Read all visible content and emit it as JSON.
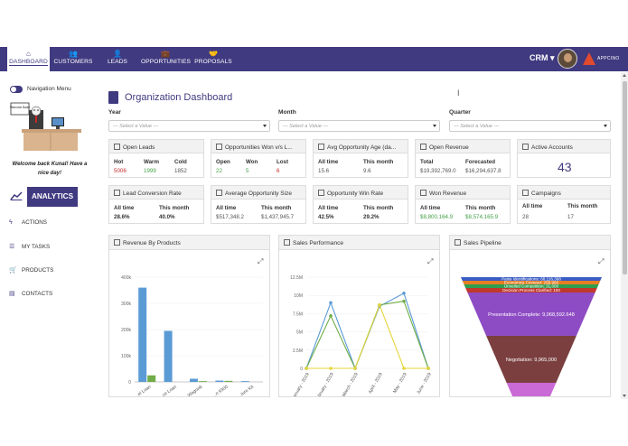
{
  "nav": {
    "items": [
      {
        "label": "DASHBOARD",
        "icon": "home-icon",
        "glyph": "⌂"
      },
      {
        "label": "CUSTOMERS",
        "icon": "users-icon",
        "glyph": "👥"
      },
      {
        "label": "LEADS",
        "icon": "user-plus-icon",
        "glyph": "👤"
      },
      {
        "label": "OPPORTUNITIES",
        "icon": "briefcase-icon",
        "glyph": "💼"
      },
      {
        "label": "PROPOSALS",
        "icon": "handshake-icon",
        "glyph": "🤝"
      }
    ],
    "crm_label": "CRM ▾",
    "logo_text": "APPCINO",
    "accent": "#403a80"
  },
  "sidebar": {
    "nav_menu_label": "Navigation Menu",
    "sign_text": "Welcome Back!",
    "welcome": "Welcome back Kunal! Have a nice day!",
    "analytics_label": "ANALYTICS",
    "links": [
      {
        "label": "ACTIONS",
        "icon": "bolt-icon",
        "glyph": "ϟ"
      },
      {
        "label": "MY TASKS",
        "icon": "list-icon",
        "glyph": "☰"
      },
      {
        "label": "PRODUCTS",
        "icon": "cart-icon",
        "glyph": "🛒"
      },
      {
        "label": "CONTACTS",
        "icon": "id-card-icon",
        "glyph": "▤"
      }
    ]
  },
  "title": "Organization Dashboard",
  "filters": [
    {
      "label": "Year",
      "placeholder": "--- Select a Value ---"
    },
    {
      "label": "Month",
      "placeholder": "--- Select a Value ---"
    },
    {
      "label": "Quarter",
      "placeholder": "--- Select a Value ---"
    }
  ],
  "kpis": {
    "open_leads": {
      "title": "Open Leads",
      "cols": [
        "Hot",
        "Warm",
        "Cold"
      ],
      "vals": [
        "5006",
        "1999",
        "1852"
      ]
    },
    "opps_won": {
      "title": "Opportunities Won v/s L...",
      "cols": [
        "Open",
        "Won",
        "Lost"
      ],
      "vals": [
        "22",
        "5",
        "6"
      ]
    },
    "avg_age": {
      "title": "Avg Opportunity Age (da...",
      "cols": [
        "All time",
        "This month"
      ],
      "vals": [
        "15.6",
        "9.6"
      ]
    },
    "open_revenue": {
      "title": "Open Revenue",
      "cols": [
        "Total",
        "Forecasted"
      ],
      "vals": [
        "$19,392,769.0",
        "$16,294,637.8"
      ]
    },
    "active_accounts": {
      "title": "Active Accounts",
      "value": "43"
    },
    "lead_conv": {
      "title": "Lead Conversion Rate",
      "cols": [
        "All time",
        "This month"
      ],
      "vals": [
        "28.6%",
        "40.0%"
      ]
    },
    "avg_opp_size": {
      "title": "Average Opportunity Size",
      "cols": [
        "All time",
        "This month"
      ],
      "vals": [
        "$517,348.2",
        "$1,437,945.7"
      ]
    },
    "win_rate": {
      "title": "Opportunity Win Rate",
      "cols": [
        "All time",
        "This month"
      ],
      "vals": [
        "42.5%",
        "29.2%"
      ]
    },
    "won_revenue": {
      "title": "Won Revenue",
      "cols": [
        "All time",
        "This month"
      ],
      "vals": [
        "$8,800,164.9",
        "$8,574,165.9"
      ]
    },
    "campaigns": {
      "title": "Campaigns",
      "cols": [
        "All time",
        "This month"
      ],
      "vals": [
        "28",
        "17"
      ]
    }
  },
  "panels": {
    "revenue_title": "Revenue By Products",
    "sales_title": "Sales Performance",
    "pipeline_title": "Sales Pipeline"
  },
  "chart_data": [
    {
      "type": "bar",
      "title": "Revenue By Products",
      "categories": [
        "...el Loan",
        "...ce Loan",
        "Wagon8",
        "...n 9300",
        "...ture Kit"
      ],
      "series": [
        {
          "values": [
            360000,
            195000,
            12000,
            5000,
            3000
          ],
          "color": "#5b9bd5"
        },
        {
          "values": [
            25000,
            0,
            3000,
            4000,
            0
          ],
          "color": "#70ad47"
        }
      ],
      "yticks": [
        "0",
        "100k",
        "200k",
        "300k",
        "400k"
      ],
      "ylim": [
        0,
        400000
      ]
    },
    {
      "type": "line",
      "title": "Sales Performance",
      "categories": [
        "January - 2019",
        "February - 2019",
        "March - 2019",
        "April - 2019",
        "May - 2019",
        "June - 2019"
      ],
      "series": [
        {
          "values": [
            0,
            9000000,
            0,
            8500000,
            10300000,
            0
          ],
          "color": "#5b9bd5"
        },
        {
          "values": [
            0,
            7200000,
            0,
            8700000,
            9200000,
            0
          ],
          "color": "#70ad47"
        },
        {
          "values": [
            0,
            0,
            0,
            8700000,
            0,
            0
          ],
          "color": "#e6d63a"
        }
      ],
      "yticks": [
        "0",
        "2.5M",
        "5M",
        "7.5M",
        "10M",
        "12.5M"
      ],
      "ylim": [
        0,
        12500000
      ]
    },
    {
      "type": "funnel",
      "title": "Sales Pipeline",
      "stages": [
        {
          "label": "Paiss Identifications: 68,116,398",
          "color": "#3b5cc4"
        },
        {
          "label": "Economics Covered: 259,960",
          "color": "#e67e22"
        },
        {
          "label": "Unveiled Competition: 31,000",
          "color": "#2e9e4f"
        },
        {
          "label": "Decision Process Clarified: 100",
          "color": "#c0392b"
        },
        {
          "label": "Presentation Complete: 9,068,592.648",
          "color": "#8e4cc4"
        },
        {
          "label": "Negotiation: 9,965,000",
          "color": "#7b3f3f"
        },
        {
          "label": "",
          "color": "#c96ad6"
        }
      ]
    }
  ]
}
